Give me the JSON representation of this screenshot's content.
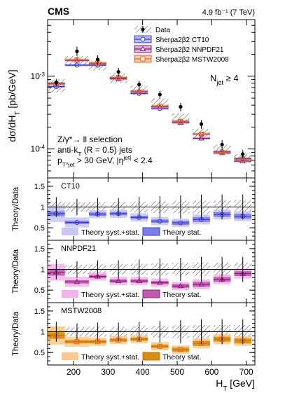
{
  "header": {
    "experiment": "CMS",
    "lumi": "4.9 fb⁻¹ (7 TeV)"
  },
  "chart_data": [
    {
      "type": "scatter",
      "panel": "main",
      "ylabel": "dσ/dH_T [pb/GeV]",
      "yscale": "log",
      "ylim": [
        4e-05,
        0.006
      ],
      "xlim": [
        125,
        725
      ],
      "x": [
        150,
        210,
        270,
        330,
        390,
        450,
        510,
        570,
        630,
        690
      ],
      "x_err": [
        25,
        35,
        25,
        25,
        25,
        25,
        25,
        25,
        25,
        25
      ],
      "legend": [
        "Data",
        "Sherpa2β2 CT10",
        "Sherpa2β2 NNPDF21",
        "Sherpa2β2 MSTW2008"
      ],
      "legend_placement": "top-right",
      "annotation_njet": "N_jet ≥ 4",
      "selection_text": [
        "Z/γ*→ ll selection",
        "anti-k_T (R = 0.5) jets",
        "p_T^jet > 30 GeV, |η^jet| < 2.4"
      ],
      "series": [
        {
          "name": "Data",
          "values": [
            0.00082,
            0.0022,
            0.0017,
            0.00115,
            0.00077,
            0.00056,
            0.00038,
            0.00022,
            0.000115,
            8.5e-05
          ],
          "err_low": [
            9e-05,
            0.0003,
            0.00025,
            0.00015,
            0.0001,
            7e-05,
            5e-05,
            3e-05,
            1.5e-05,
            1e-05
          ],
          "err_high": [
            0.0001,
            0.00035,
            0.00025,
            0.00015,
            0.0001,
            7e-05,
            5e-05,
            3e-05,
            1.7e-05,
            1.2e-05
          ],
          "syst_box": [
            [
              0.0006,
              0.0009
            ],
            [
              0.0014,
              0.0019
            ],
            [
              0.0012,
              0.0016
            ],
            [
              0.0008,
              0.0011
            ],
            [
              0.00056,
              0.00074
            ],
            [
              0.00038,
              0.0005
            ],
            [
              0.00023,
              0.00031
            ],
            [
              0.00014,
              0.00019
            ],
            [
              8.5e-05,
              0.000115
            ],
            [
              6.5e-05,
              8.5e-05
            ]
          ]
        },
        {
          "name": "Sherpa2β2 CT10",
          "values": [
            0.00072,
            0.00142,
            0.00142,
            0.00095,
            0.00058,
            0.00036,
            0.00024,
            0.00016,
            9.2e-05,
            7.4e-05
          ],
          "color": "#3b3bd6"
        },
        {
          "name": "Sherpa2β2 NNPDF21",
          "values": [
            0.0008,
            0.00165,
            0.0015,
            0.00092,
            0.00062,
            0.00038,
            0.00023,
            0.00014,
            8.8e-05,
            6.8e-05
          ],
          "color": "#8a1f7a"
        },
        {
          "name": "Sherpa2β2 MSTW2008",
          "values": [
            0.00078,
            0.00168,
            0.00152,
            0.00096,
            0.00061,
            0.00039,
            0.00024,
            0.00016,
            9e-05,
            7.2e-05
          ],
          "color": "#e0671c"
        }
      ]
    },
    {
      "type": "scatter",
      "panel": "ratio",
      "label": "CT10",
      "ylabel": "Theory/Data",
      "ylim": [
        0.2,
        1.7
      ],
      "legend": [
        "Theory syst.+stat.",
        "Theory stat."
      ],
      "color": "#3b3bd6",
      "band_outer": "#c7c7f2",
      "band_inner": "#7d7de8",
      "values": [
        0.84,
        0.63,
        0.83,
        0.84,
        0.75,
        0.66,
        0.62,
        0.7,
        0.82,
        0.78
      ],
      "stat_err": [
        0.06,
        0.04,
        0.04,
        0.04,
        0.04,
        0.04,
        0.05,
        0.06,
        0.06,
        0.06
      ],
      "syst_err": [
        0.2,
        0.12,
        0.1,
        0.1,
        0.1,
        0.1,
        0.1,
        0.12,
        0.12,
        0.12
      ],
      "data_err": [
        0.24,
        0.2,
        0.22,
        0.22,
        0.24,
        0.26,
        0.28,
        0.3,
        0.3,
        0.3
      ]
    },
    {
      "type": "scatter",
      "panel": "ratio",
      "label": "NNPDF21",
      "ylabel": "Theory/Data",
      "ylim": [
        0.2,
        1.7
      ],
      "legend": [
        "Theory syst.+stat.",
        "Theory stat."
      ],
      "color": "#8a1f7a",
      "band_outer": "#f5b2ea",
      "band_inner": "#c05cb0",
      "values": [
        0.93,
        0.7,
        0.83,
        0.72,
        0.72,
        0.68,
        0.6,
        0.64,
        0.76,
        0.9
      ],
      "stat_err": [
        0.08,
        0.04,
        0.04,
        0.04,
        0.04,
        0.04,
        0.05,
        0.06,
        0.06,
        0.06
      ],
      "syst_err": [
        0.2,
        0.12,
        0.1,
        0.1,
        0.1,
        0.1,
        0.1,
        0.12,
        0.12,
        0.12
      ],
      "data_err": [
        0.24,
        0.2,
        0.22,
        0.22,
        0.24,
        0.26,
        0.28,
        0.3,
        0.3,
        0.3
      ]
    },
    {
      "type": "scatter",
      "panel": "ratio",
      "label": "MSTW2008",
      "ylabel": "Theory/Data",
      "ylim": [
        0.2,
        1.7
      ],
      "legend": [
        "Theory syst.+stat.",
        "Theory stat."
      ],
      "color": "#e0671c",
      "band_outer": "#fbc889",
      "band_inner": "#d4900c",
      "values": [
        0.91,
        0.76,
        0.76,
        0.8,
        0.82,
        0.65,
        0.57,
        0.72,
        0.82,
        0.78
      ],
      "stat_err": [
        0.08,
        0.04,
        0.04,
        0.04,
        0.04,
        0.04,
        0.05,
        0.06,
        0.06,
        0.06
      ],
      "syst_err": [
        0.22,
        0.12,
        0.1,
        0.1,
        0.1,
        0.1,
        0.1,
        0.12,
        0.12,
        0.12
      ],
      "data_err": [
        0.24,
        0.2,
        0.22,
        0.22,
        0.24,
        0.26,
        0.28,
        0.3,
        0.3,
        0.3
      ]
    }
  ],
  "x_axis": {
    "label": "H_T [GeV]",
    "ticks": [
      200,
      300,
      400,
      500,
      600,
      700
    ]
  }
}
